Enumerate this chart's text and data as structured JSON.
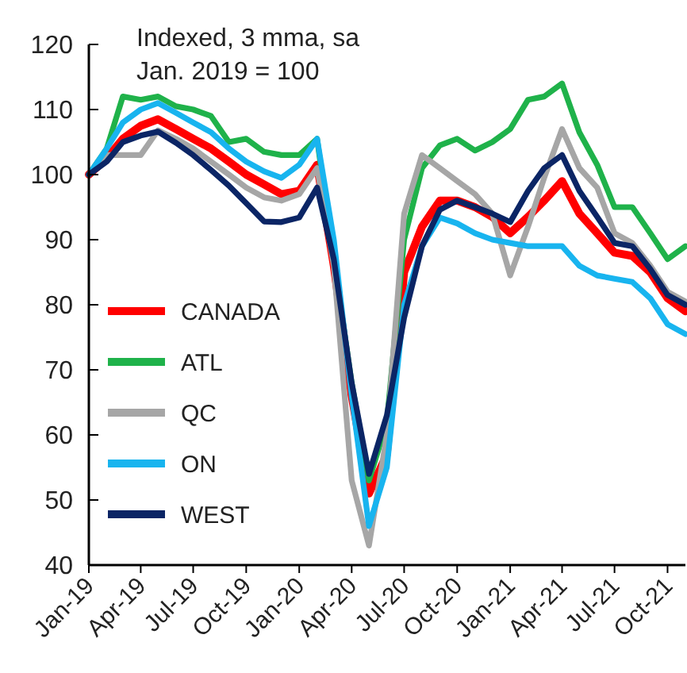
{
  "chart_data": {
    "type": "line",
    "annotations": [
      "Indexed, 3 mma, sa",
      "Jan. 2019 = 100"
    ],
    "x": [
      "2019-01",
      "2019-02",
      "2019-03",
      "2019-04",
      "2019-05",
      "2019-06",
      "2019-07",
      "2019-08",
      "2019-09",
      "2019-10",
      "2019-11",
      "2019-12",
      "2020-01",
      "2020-02",
      "2020-03",
      "2020-04",
      "2020-05",
      "2020-06",
      "2020-07",
      "2020-08",
      "2020-09",
      "2020-10",
      "2020-11",
      "2020-12",
      "2021-01",
      "2021-02",
      "2021-03",
      "2021-04",
      "2021-05",
      "2021-06",
      "2021-07",
      "2021-08",
      "2021-09",
      "2021-10",
      "2021-11"
    ],
    "series": [
      {
        "name": "CANADA",
        "color": "#ff0000",
        "values": [
          100,
          102.5,
          105.5,
          107.5,
          108.5,
          107,
          105.5,
          104,
          102,
          100,
          98.5,
          97,
          97.5,
          101.5,
          86,
          66,
          51,
          57,
          85,
          92,
          96,
          96,
          95,
          93.5,
          91,
          93.5,
          96,
          99,
          94,
          91,
          88,
          87.5,
          85,
          81,
          79
        ]
      },
      {
        "name": "ATL",
        "color": "#1fb24a",
        "values": [
          100,
          104,
          112,
          111.5,
          112,
          110.5,
          110,
          109,
          105,
          105.5,
          103.5,
          103,
          103,
          105.5,
          87,
          68,
          53,
          62,
          90,
          101,
          104.5,
          105.5,
          103.7,
          105,
          107,
          111.5,
          112,
          114,
          106.5,
          101.5,
          95,
          95,
          91,
          87,
          89
        ]
      },
      {
        "name": "QC",
        "color": "#a6a6a6",
        "values": [
          100,
          103,
          103,
          103,
          106.8,
          105.5,
          104,
          102,
          100,
          98,
          96.5,
          96,
          97,
          101,
          86,
          53,
          43,
          60,
          94,
          103,
          101,
          99,
          97,
          94,
          84.5,
          92,
          99.5,
          107,
          101,
          98,
          91,
          89.5,
          86,
          82,
          80.5
        ]
      },
      {
        "name": "ON",
        "color": "#18b4ef",
        "values": [
          100,
          104,
          108,
          110,
          111,
          109.5,
          108,
          106.5,
          104,
          102,
          100.5,
          99.5,
          101.5,
          105.5,
          90,
          66,
          46,
          55,
          80,
          89,
          93.4,
          92.5,
          91,
          90,
          89.5,
          89,
          89,
          89,
          86,
          84.5,
          84,
          83.5,
          81,
          77,
          75.5
        ]
      },
      {
        "name": "WEST",
        "color": "#0b2565",
        "values": [
          100,
          102,
          105,
          106,
          106.6,
          104.9,
          103,
          100.7,
          98.3,
          95.6,
          92.8,
          92.7,
          93.4,
          98,
          87,
          68,
          54,
          63,
          78,
          89,
          94.6,
          96,
          95,
          94,
          92.7,
          97.5,
          101,
          103,
          97.5,
          93.5,
          89.5,
          89,
          85.5,
          81.5,
          80
        ]
      }
    ],
    "xlim": [
      "2019-01",
      "2021-11"
    ],
    "xticks": [
      {
        "value": "2019-01",
        "label": "Jan-19"
      },
      {
        "value": "2019-04",
        "label": "Apr-19"
      },
      {
        "value": "2019-07",
        "label": "Jul-19"
      },
      {
        "value": "2019-10",
        "label": "Oct-19"
      },
      {
        "value": "2020-01",
        "label": "Jan-20"
      },
      {
        "value": "2020-04",
        "label": "Apr-20"
      },
      {
        "value": "2020-07",
        "label": "Jul-20"
      },
      {
        "value": "2020-10",
        "label": "Oct-20"
      },
      {
        "value": "2021-01",
        "label": "Jan-21"
      },
      {
        "value": "2021-04",
        "label": "Apr-21"
      },
      {
        "value": "2021-07",
        "label": "Jul-21"
      },
      {
        "value": "2021-10",
        "label": "Oct-21"
      }
    ],
    "ylim": [
      40,
      120
    ],
    "yticks": [
      40,
      50,
      60,
      70,
      80,
      90,
      100,
      110,
      120
    ],
    "grid": false,
    "legend": "bottom left",
    "marker": "none",
    "line_style": "solid"
  }
}
